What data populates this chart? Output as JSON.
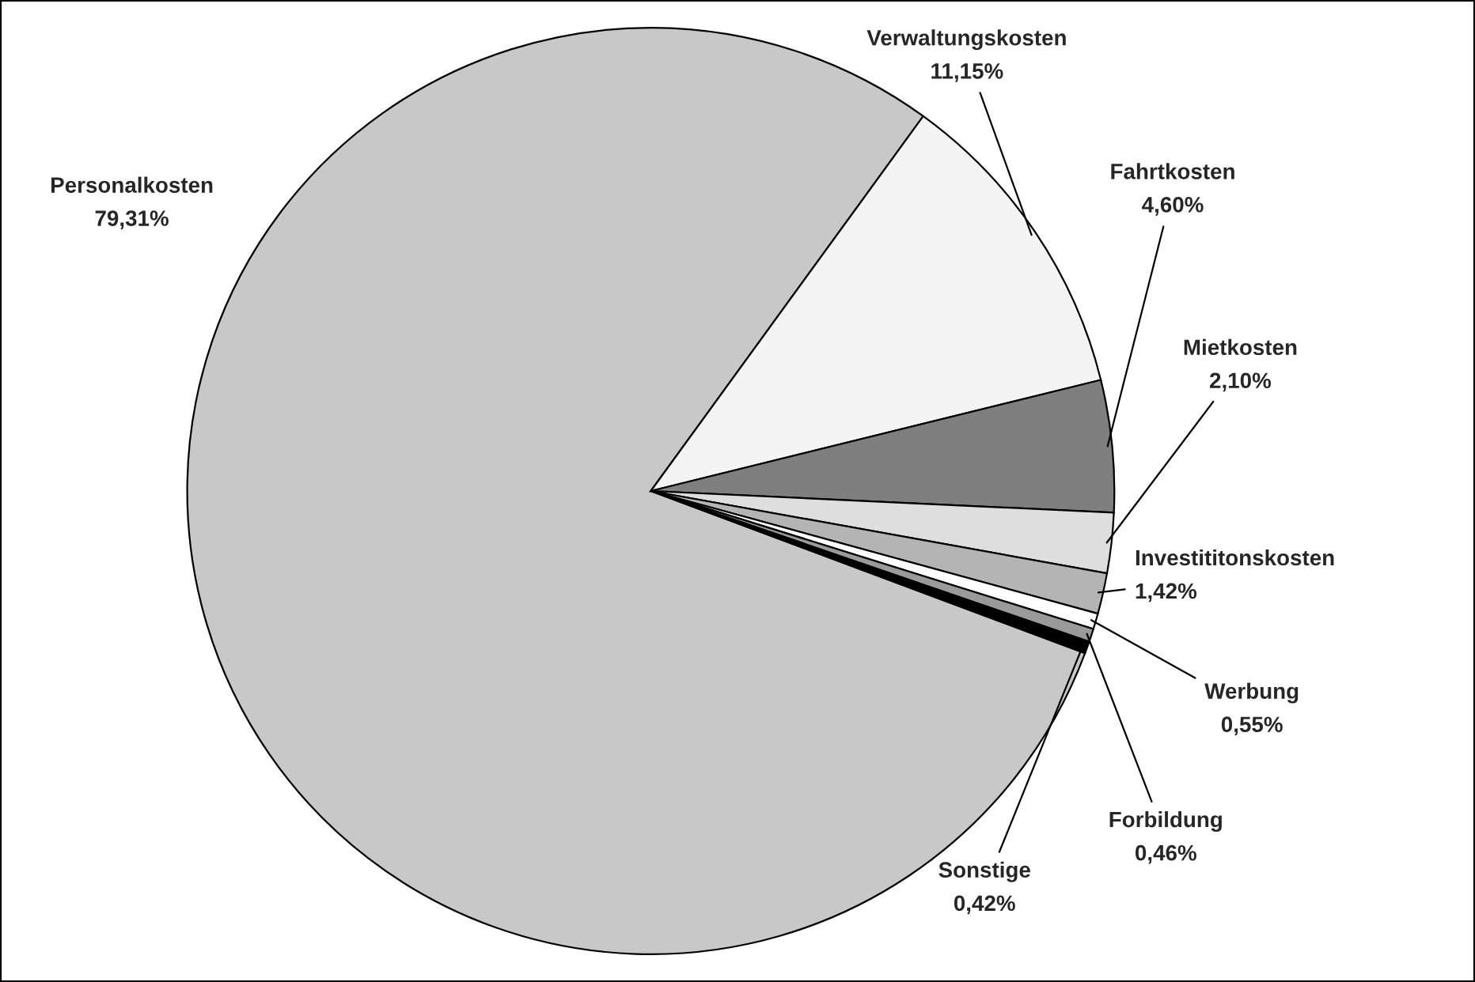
{
  "chart_data": {
    "type": "pie",
    "categories": [
      "Personalkosten",
      "Verwaltungskosten",
      "Fahrtkosten",
      "Mietkosten",
      "Investititonskosten",
      "Werbung",
      "Forbildung",
      "Sonstige"
    ],
    "values": [
      79.31,
      11.15,
      4.6,
      2.1,
      1.42,
      0.55,
      0.46,
      0.42
    ],
    "value_labels": [
      "79,31%",
      "11,15%",
      "4,60%",
      "2,10%",
      "1,42%",
      "0,55%",
      "0,46%",
      "0,42%"
    ],
    "colors": [
      "#c8c8c8",
      "#f4f4f4",
      "#7f7f7f",
      "#dedede",
      "#b4b4b4",
      "#ffffff",
      "#9a9a9a",
      "#000000"
    ],
    "legend": false
  }
}
